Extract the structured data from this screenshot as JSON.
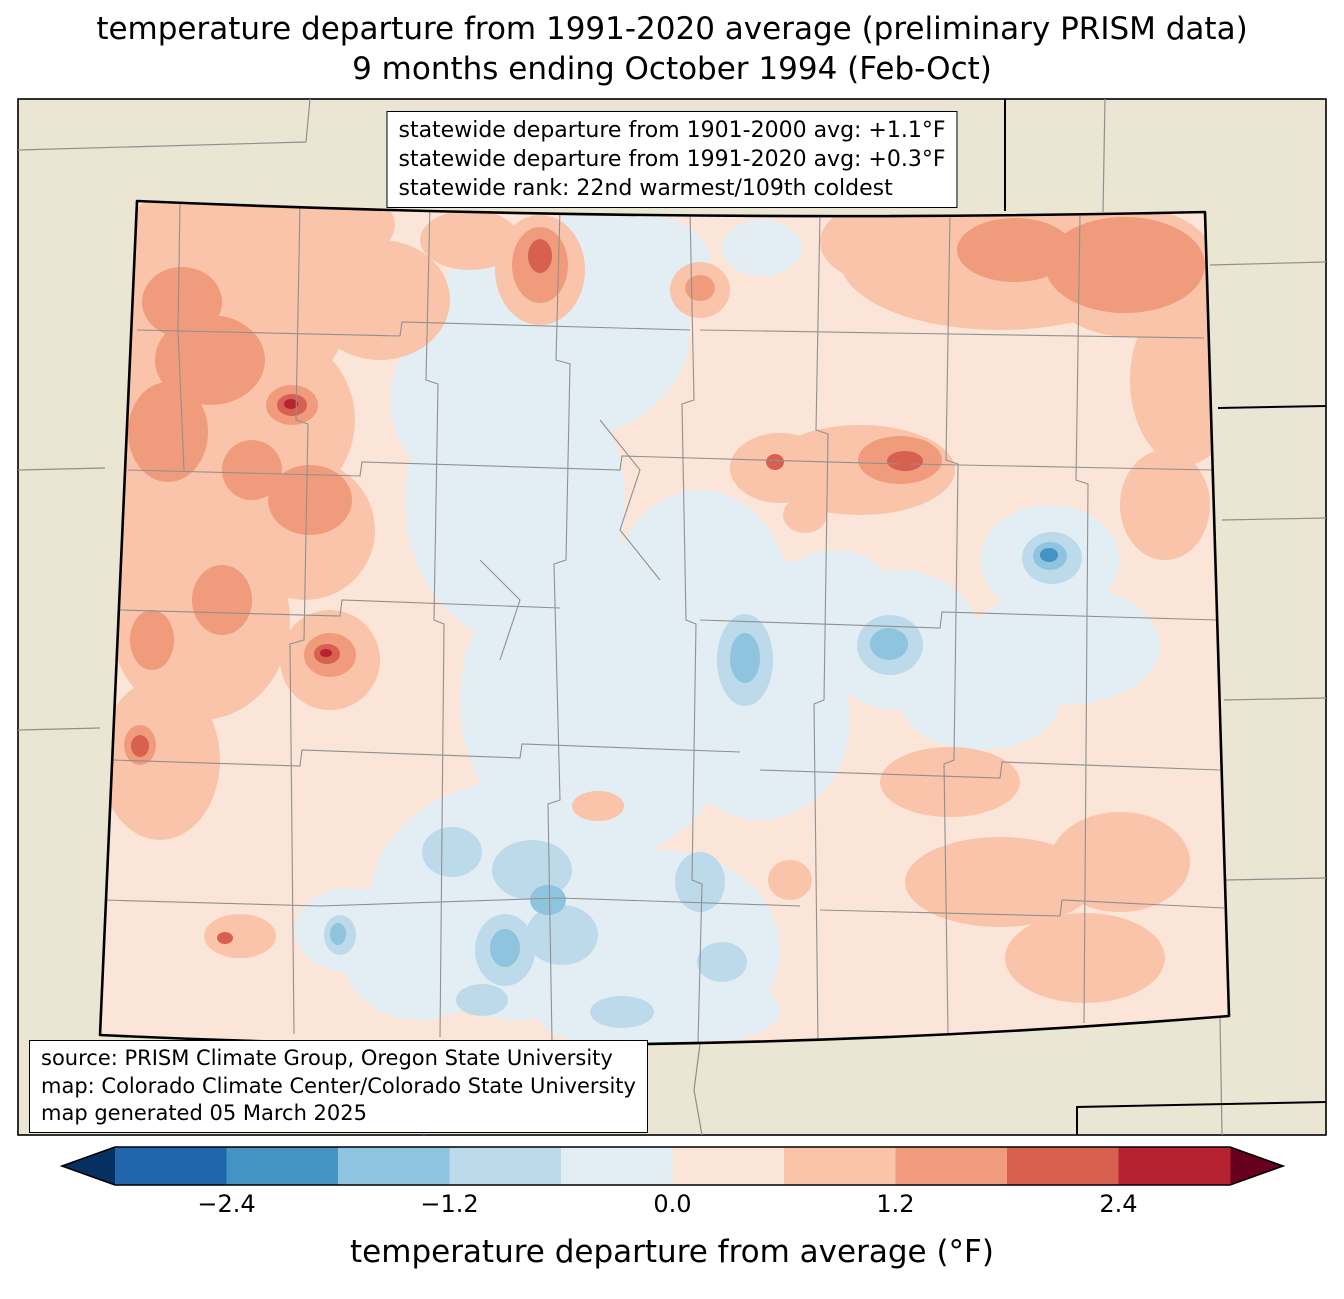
{
  "title": {
    "line1": "temperature departure from 1991-2020 average (preliminary PRISM data)",
    "line2": "9 months ending October 1994 (Feb-Oct)"
  },
  "stats_box": {
    "lines": [
      "statewide departure from 1901-2000 avg: +1.1°F",
      "statewide departure from 1991-2020 avg: +0.3°F",
      "statewide rank: 22nd warmest/109th coldest"
    ]
  },
  "source_box": {
    "lines": [
      "source: PRISM Climate Group, Oregon State University",
      "map: Colorado Climate Center/Colorado State University",
      "map generated 05 March 2025"
    ]
  },
  "colorbar": {
    "label": "temperature departure from average (°F)",
    "tick_labels": [
      "−2.4",
      "−1.2",
      "0.0",
      "1.2",
      "2.4"
    ],
    "tick_values": [
      -2.4,
      -1.2,
      0.0,
      1.2,
      2.4
    ],
    "range_f": [
      -3.0,
      3.0
    ],
    "contour_interval_f": 0.6,
    "colors": [
      "#053061",
      "#2166ac",
      "#4393c3",
      "#8ec4dd",
      "#bcdaea",
      "#e3eef4",
      "#fbe5d8",
      "#f9c4a9",
      "#f09b7c",
      "#d8604f",
      "#b72230",
      "#67001f"
    ]
  },
  "map": {
    "region": "Colorado",
    "background_color": "#eae6d3",
    "county_line_color": "#909090",
    "state_outline_color": "#000000"
  },
  "chart_data": {
    "type": "heatmap",
    "subtype": "filled-contour-map",
    "region": "Colorado (with county boundaries)",
    "variable": "temperature departure from average (°F)",
    "period": "9 months ending October 1994 (Feb-Oct)",
    "baseline": "1991-2020 average (preliminary PRISM data)",
    "statewide_departure_from_1901_2000_avg_f": 1.1,
    "statewide_departure_from_1991_2020_avg_f": 0.3,
    "statewide_rank": "22nd warmest/109th coldest",
    "scale": {
      "min_f": -3.0,
      "max_f": 3.0,
      "step_f": 0.6,
      "colormap": "RdBu reversed (blue = colder, red = warmer)"
    },
    "pattern_summary": "Warm departures (+0.6 to +2.4°F) across western Colorado, the northern border and the northeast plains; near-zero to cool departures (0 to −2.4°F) through the central mountains, south-central valleys and scattered east-plains pockets."
  }
}
